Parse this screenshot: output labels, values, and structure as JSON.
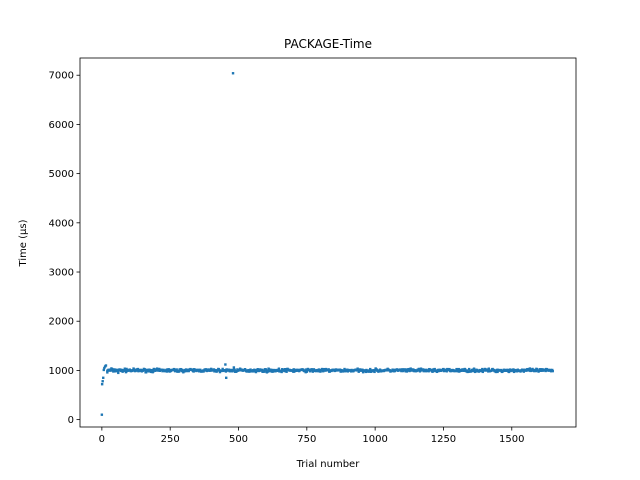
{
  "chart_data": {
    "type": "scatter",
    "title": "PACKAGE-Time",
    "xlabel": "Trial number",
    "ylabel": "Time (μs)",
    "xlim": [
      -80,
      1735
    ],
    "ylim": [
      -150,
      7350
    ],
    "xticks": [
      0,
      250,
      500,
      750,
      1000,
      1250,
      1500
    ],
    "yticks": [
      0,
      1000,
      2000,
      3000,
      4000,
      5000,
      6000,
      7000
    ],
    "color": "#1f77b4",
    "grid": false,
    "legend": "none",
    "points": [
      [
        0,
        100
      ],
      [
        1,
        720
      ],
      [
        3,
        780
      ],
      [
        5,
        850
      ],
      [
        7,
        1010
      ],
      [
        9,
        1050
      ],
      [
        12,
        1080
      ],
      [
        15,
        1100
      ],
      [
        20,
        960
      ],
      [
        35,
        1040
      ],
      [
        60,
        950
      ],
      [
        90,
        1030
      ],
      [
        452,
        1120
      ],
      [
        455,
        850
      ],
      [
        480,
        7040
      ],
      [
        483,
        1060
      ]
    ],
    "band": {
      "x_start": 20,
      "x_end": 1650,
      "step": 2,
      "center": 1000,
      "spread": 45
    }
  }
}
